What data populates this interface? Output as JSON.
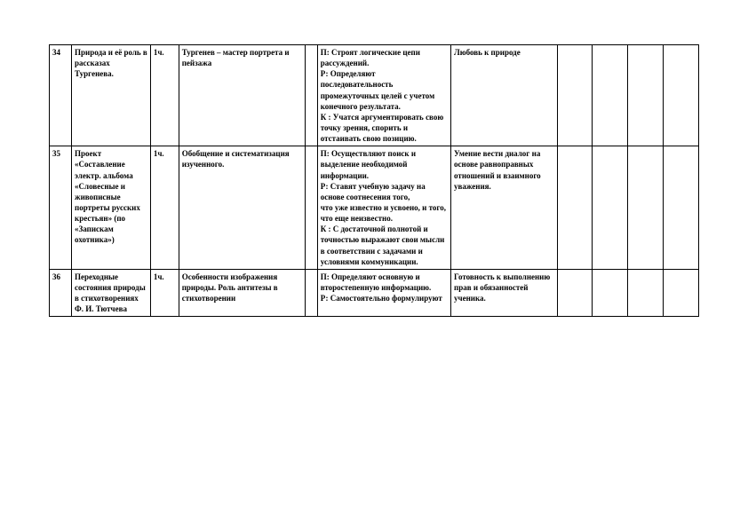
{
  "table": {
    "rows": [
      {
        "num": "34",
        "topic": "Природа и её роль в рассказах Тургенева.",
        "hours": "1ч.",
        "content": "Тургенев – мастер портрета и пейзажа",
        "empty": "",
        "uud": "П: Строят логические цепи рассуждений.\nР: Определяют последовательность промежуточных целей с учетом конечного результата.\nК : Учатся аргументировать свою точку зрения, спорить и отстаивать свою позицию.",
        "result": "Любовь к природе",
        "c7": "",
        "c8": "",
        "c9": "",
        "c10": ""
      },
      {
        "num": "35",
        "topic": "Проект «Составление электр. альбома «Словесные и живописные портреты русских крестьян» (по «Запискам охотника»)",
        "hours": "1ч.",
        "content": "Обобщение и систематизация изученного.",
        "empty": "",
        "uud": "П: Осуществляют поиск и выделение необходимой информации.\nР: Ставят учебную задачу на основе соотнесения того,\nчто уже известно и усвоено, и того, что еще неизвестно.\nК : С достаточной полнотой и точностью выражают свои мысли в соответствии с задачами и условиями коммуникации.",
        "result": "Умение вести диалог на основе равноправных отношений и взаимного уважения.",
        "c7": "",
        "c8": "",
        "c9": "",
        "c10": ""
      },
      {
        "num": "36",
        "topic": "Переходные состояния природы в стихотворениях Ф. И. Тютчева",
        "hours": "1ч.",
        "content": "Особенности изображения природы. Роль антитезы в стихотворении",
        "empty": "",
        "uud": "П: Определяют основную и второстепенную информацию.\n Р: Самостоятельно формулируют",
        "result": "Готовность к выполнению прав и обязанностей ученика.",
        "c7": "",
        "c8": "",
        "c9": "",
        "c10": ""
      }
    ]
  }
}
